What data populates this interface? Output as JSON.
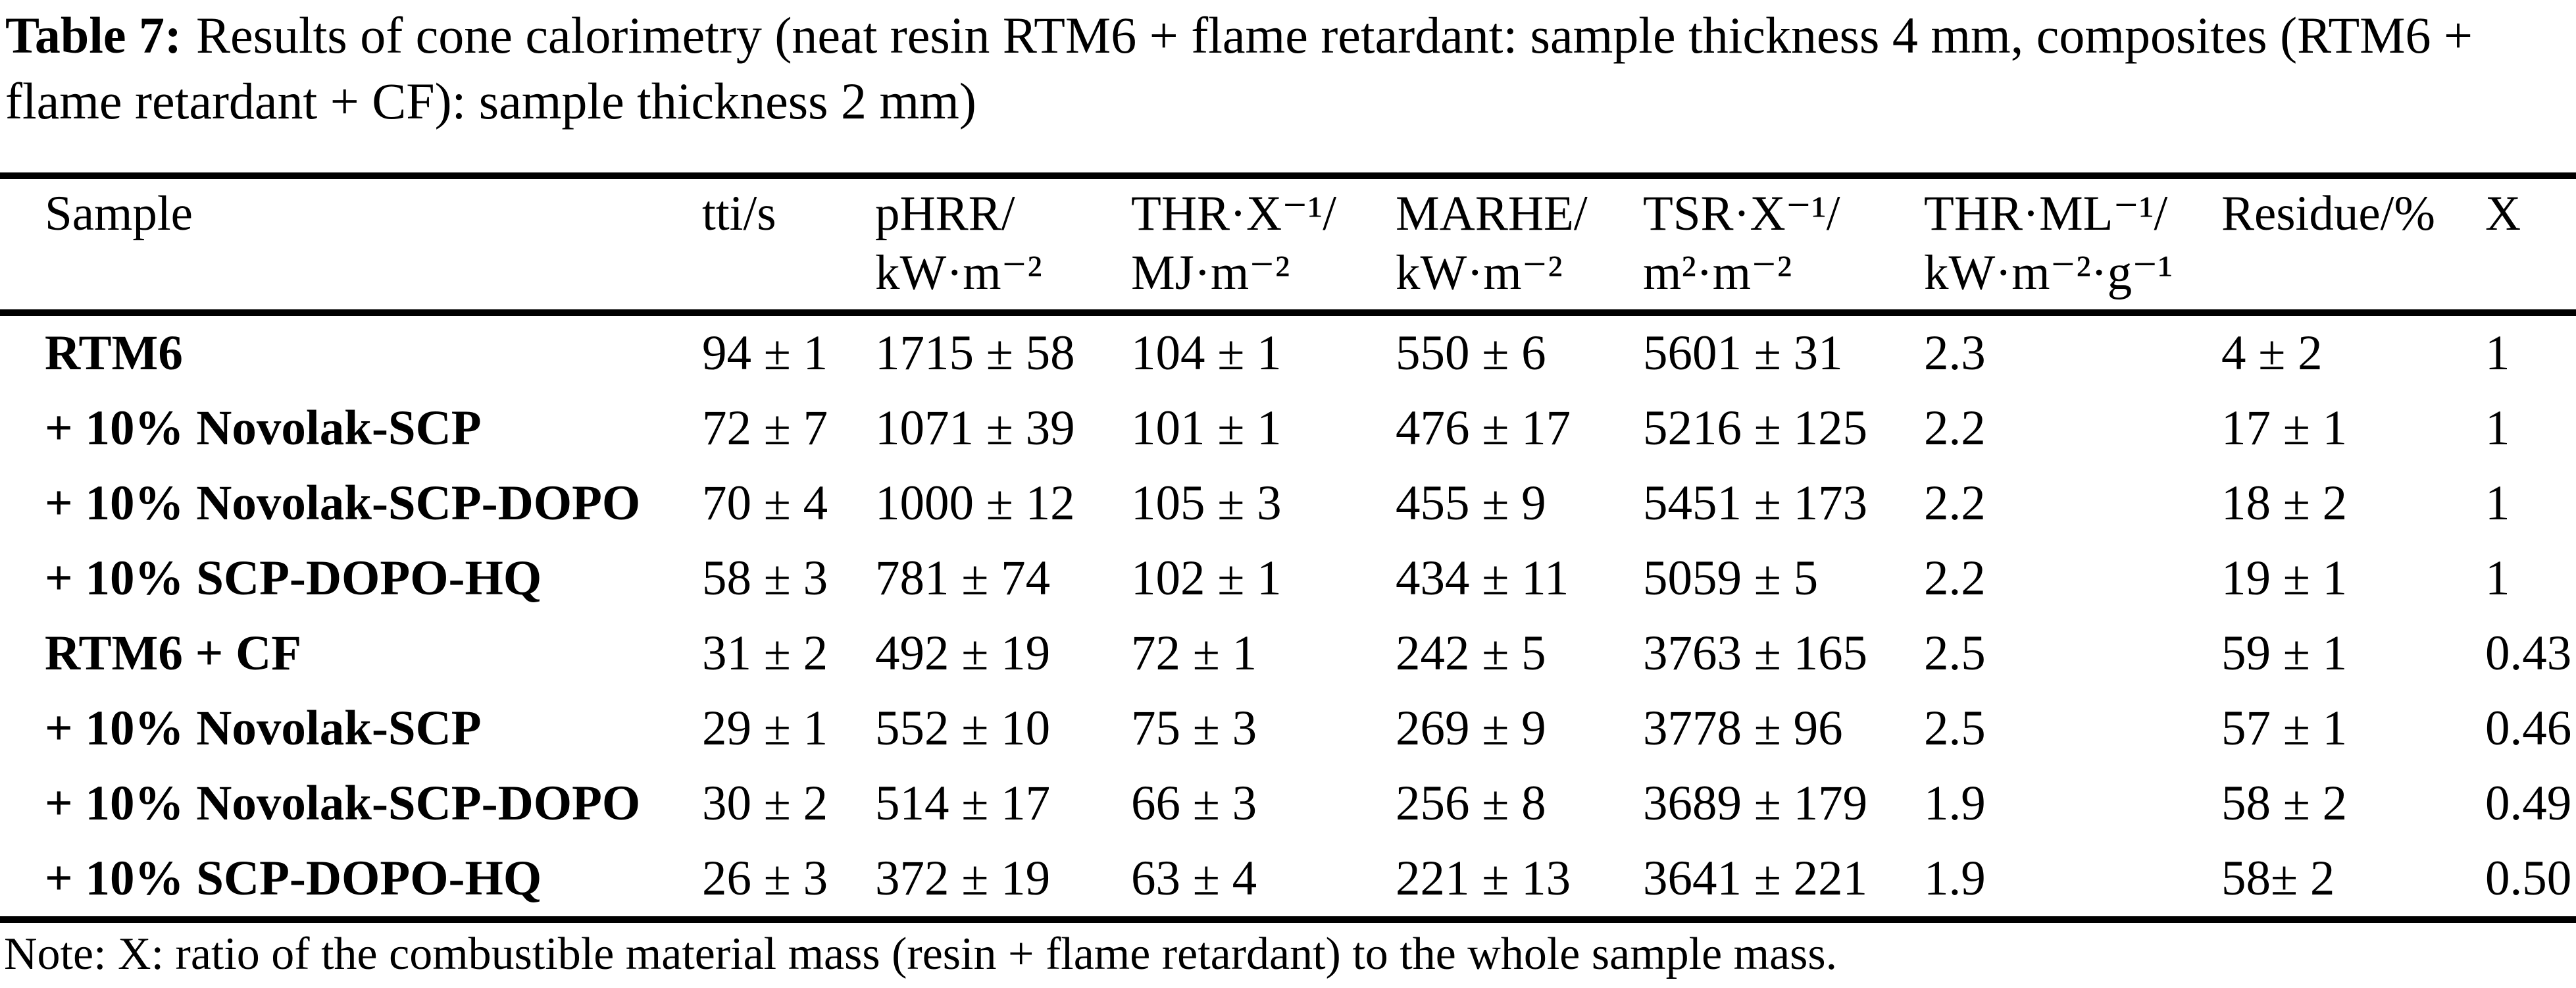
{
  "document": {
    "title_label": "Table 7:",
    "title_text": "Results of cone calorimetry (neat resin RTM6 + flame retardant: sample thickness 4 mm, composites (RTM6 + flame retardant + CF): sample thickness 2 mm)",
    "note": "Note: X: ratio of the combustible material mass (resin + flame retardant) to the whole sample mass."
  },
  "table": {
    "columns": [
      {
        "label": "Sample"
      },
      {
        "label": "tti/s"
      },
      {
        "label": "pHRR/\nkW·m⁻²"
      },
      {
        "label": "THR·X⁻¹/\nMJ·m⁻²"
      },
      {
        "label": "MARHE/\nkW·m⁻²"
      },
      {
        "label": "TSR·X⁻¹/\nm²·m⁻²"
      },
      {
        "label": "THR·ML⁻¹/\nkW·m⁻²·g⁻¹"
      },
      {
        "label": "Residue/%"
      },
      {
        "label": "X"
      }
    ],
    "rows": [
      {
        "sample": "RTM6",
        "tti": "94 ± 1",
        "phrr": "1715 ± 58",
        "thr_x": "104 ± 1",
        "marhe": "550 ± 6",
        "tsr_x": "5601 ± 31",
        "thr_ml": "2.3",
        "residue": "4 ± 2",
        "x": "1"
      },
      {
        "sample": "+ 10% Novolak-SCP",
        "tti": "72 ± 7",
        "phrr": "1071 ± 39",
        "thr_x": "101 ± 1",
        "marhe": "476 ± 17",
        "tsr_x": "5216 ± 125",
        "thr_ml": "2.2",
        "residue": "17 ± 1",
        "x": "1"
      },
      {
        "sample": "+ 10% Novolak-SCP-DOPO",
        "tti": "70 ± 4",
        "phrr": "1000 ± 12",
        "thr_x": "105 ± 3",
        "marhe": "455 ± 9",
        "tsr_x": "5451 ± 173",
        "thr_ml": "2.2",
        "residue": "18 ± 2",
        "x": "1"
      },
      {
        "sample": "+ 10% SCP-DOPO-HQ",
        "tti": "58 ± 3",
        "phrr": "781 ± 74",
        "thr_x": "102 ± 1",
        "marhe": "434 ± 11",
        "tsr_x": "5059 ± 5",
        "thr_ml": "2.2",
        "residue": "19 ± 1",
        "x": "1"
      },
      {
        "sample": "RTM6 + CF",
        "tti": "31 ± 2",
        "phrr": "492 ± 19",
        "thr_x": "72 ± 1",
        "marhe": "242 ± 5",
        "tsr_x": "3763 ± 165",
        "thr_ml": "2.5",
        "residue": "59 ± 1",
        "x": "0.43"
      },
      {
        "sample": "+ 10% Novolak-SCP",
        "tti": "29 ± 1",
        "phrr": "552 ± 10",
        "thr_x": "75 ± 3",
        "marhe": "269 ± 9",
        "tsr_x": "3778 ± 96",
        "thr_ml": "2.5",
        "residue": "57 ± 1",
        "x": "0.46"
      },
      {
        "sample": "+ 10% Novolak-SCP-DOPO",
        "tti": "30 ± 2",
        "phrr": "514 ± 17",
        "thr_x": "66 ± 3",
        "marhe": "256 ± 8",
        "tsr_x": "3689 ± 179",
        "thr_ml": "1.9",
        "residue": "58 ± 2",
        "x": "0.49"
      },
      {
        "sample": "+ 10% SCP-DOPO-HQ",
        "tti": "26 ± 3",
        "phrr": "372 ± 19",
        "thr_x": "63 ± 4",
        "marhe": "221 ± 13",
        "tsr_x": "3641 ± 221",
        "thr_ml": "1.9",
        "residue": "58± 2",
        "x": "0.50"
      }
    ]
  }
}
